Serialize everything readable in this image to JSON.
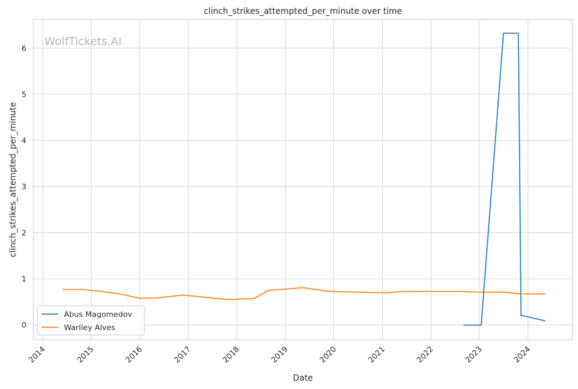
{
  "chart_data": {
    "type": "line",
    "title": "clinch_strikes_attempted_per_minute over time",
    "xlabel": "Date",
    "ylabel": "clinch_strikes_attempted_per_minute",
    "watermark": "WolfTickets.AI",
    "xlim": [
      "2013-10-22",
      "2024-12-01"
    ],
    "ylim": [
      -0.32,
      6.62
    ],
    "x_ticks": [
      "2014",
      "2015",
      "2016",
      "2017",
      "2018",
      "2019",
      "2020",
      "2021",
      "2022",
      "2023",
      "2024"
    ],
    "y_ticks": [
      0,
      1,
      2,
      3,
      4,
      5,
      6
    ],
    "grid": true,
    "legend_position": "lower-left",
    "series": [
      {
        "name": "Abus Magomedov",
        "color": "#1f77b4",
        "points": [
          [
            "2022-09-03",
            0.0
          ],
          [
            "2023-01-14",
            0.0
          ],
          [
            "2023-07-01",
            6.32
          ],
          [
            "2023-10-21",
            6.32
          ],
          [
            "2023-11-10",
            0.21
          ],
          [
            "2024-05-11",
            0.09
          ]
        ]
      },
      {
        "name": "Warlley Alves",
        "color": "#ff7f0e",
        "points": [
          [
            "2014-05-31",
            0.77
          ],
          [
            "2014-11-08",
            0.77
          ],
          [
            "2015-07-25",
            0.68
          ],
          [
            "2016-01-02",
            0.58
          ],
          [
            "2016-05-14",
            0.585
          ],
          [
            "2016-11-19",
            0.65
          ],
          [
            "2017-10-28",
            0.55
          ],
          [
            "2018-05-12",
            0.575
          ],
          [
            "2018-08-25",
            0.75
          ],
          [
            "2019-01-19",
            0.78
          ],
          [
            "2019-05-11",
            0.81
          ],
          [
            "2019-11-16",
            0.73
          ],
          [
            "2021-01-20",
            0.695
          ],
          [
            "2021-06-05",
            0.725
          ],
          [
            "2022-09-03",
            0.725
          ],
          [
            "2023-01-14",
            0.71
          ],
          [
            "2023-07-01",
            0.71
          ],
          [
            "2023-11-10",
            0.675
          ],
          [
            "2024-05-11",
            0.675
          ]
        ]
      }
    ]
  }
}
